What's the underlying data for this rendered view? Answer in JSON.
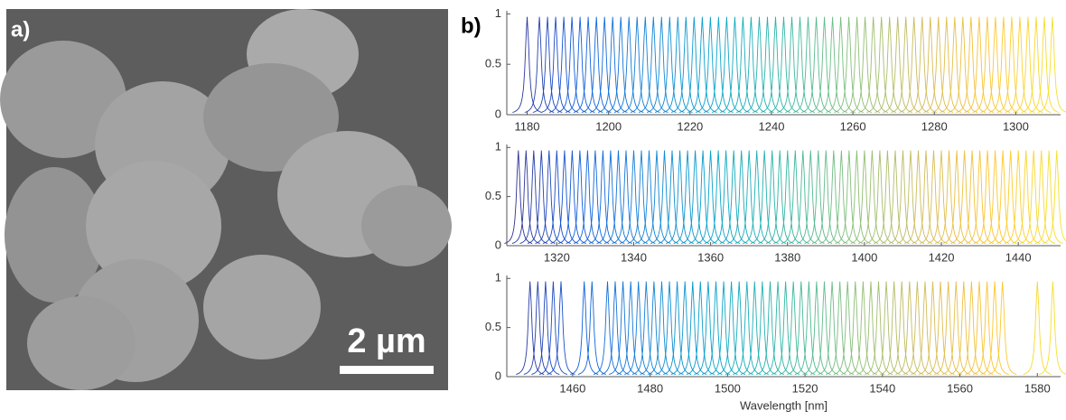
{
  "panel_a": {
    "label": "a)",
    "scale_bar": "2 µm"
  },
  "panel_b": {
    "label": "b)"
  },
  "colormap": [
    "#352a87",
    "#0f5cdd",
    "#1481d6",
    "#06a4ca",
    "#2eb7a4",
    "#87bf77",
    "#d1bb59",
    "#fdc530",
    "#f5e32c"
  ],
  "chart_data": [
    {
      "type": "spectra",
      "peak_height": 0.97,
      "xlim": [
        1175,
        1311
      ],
      "xticks": [
        1180,
        1200,
        1220,
        1240,
        1260,
        1280,
        1300
      ],
      "ylim": [
        0,
        1.03
      ],
      "yticks": [
        0,
        0.5,
        1
      ],
      "peaks": [
        1180,
        1183,
        1185,
        1187,
        1189,
        1191,
        1193,
        1195,
        1197,
        1199,
        1201,
        1203,
        1205,
        1207,
        1209,
        1211,
        1213,
        1215,
        1217,
        1219,
        1221,
        1223,
        1225,
        1227,
        1229,
        1231,
        1233,
        1235,
        1237,
        1239,
        1241,
        1243,
        1245,
        1247,
        1249,
        1251,
        1253,
        1255,
        1257,
        1259,
        1261,
        1263,
        1265,
        1267,
        1269,
        1271,
        1273,
        1275,
        1277,
        1279,
        1281,
        1283,
        1285,
        1287,
        1289,
        1291,
        1293,
        1295,
        1297,
        1299,
        1301,
        1303,
        1305,
        1307,
        1309
      ]
    },
    {
      "type": "spectra",
      "peak_height": 0.97,
      "xlim": [
        1307,
        1451
      ],
      "xticks": [
        1320,
        1340,
        1360,
        1380,
        1400,
        1420,
        1440
      ],
      "ylim": [
        0,
        1.03
      ],
      "yticks": [
        0,
        0.5,
        1
      ],
      "peaks": [
        1310,
        1312,
        1314,
        1316,
        1318,
        1320,
        1322,
        1324,
        1326,
        1328,
        1330,
        1332,
        1334,
        1336,
        1338,
        1340,
        1342,
        1344,
        1346,
        1348,
        1350,
        1352,
        1354,
        1356,
        1358,
        1360,
        1362,
        1364,
        1366,
        1368,
        1370,
        1372,
        1374,
        1376,
        1378,
        1380,
        1382,
        1384,
        1386,
        1388,
        1390,
        1392,
        1394,
        1396,
        1398,
        1400,
        1402,
        1404,
        1406,
        1408,
        1410,
        1412,
        1414,
        1416,
        1418,
        1420,
        1422,
        1424,
        1426,
        1428,
        1430,
        1432,
        1434,
        1436,
        1438,
        1440,
        1442,
        1444,
        1446,
        1448,
        1450
      ]
    },
    {
      "type": "spectra",
      "peak_height": 0.97,
      "xlim": [
        1443,
        1586
      ],
      "xticks": [
        1460,
        1480,
        1500,
        1520,
        1540,
        1560,
        1580
      ],
      "ylim": [
        0,
        1.03
      ],
      "yticks": [
        0,
        0.5,
        1
      ],
      "xlabel": "Wavelength [nm]",
      "peaks": [
        1449,
        1451,
        1453,
        1455,
        1457,
        1463,
        1465,
        1469,
        1471,
        1473,
        1475,
        1477,
        1479,
        1481,
        1483,
        1485,
        1487,
        1489,
        1491,
        1493,
        1495,
        1497,
        1499,
        1501,
        1503,
        1505,
        1507,
        1509,
        1511,
        1513,
        1515,
        1517,
        1519,
        1521,
        1523,
        1525,
        1527,
        1529,
        1531,
        1533,
        1535,
        1537,
        1539,
        1541,
        1543,
        1545,
        1547,
        1549,
        1551,
        1553,
        1555,
        1557,
        1559,
        1561,
        1563,
        1565,
        1567,
        1569,
        1571,
        1580,
        1584
      ]
    }
  ]
}
